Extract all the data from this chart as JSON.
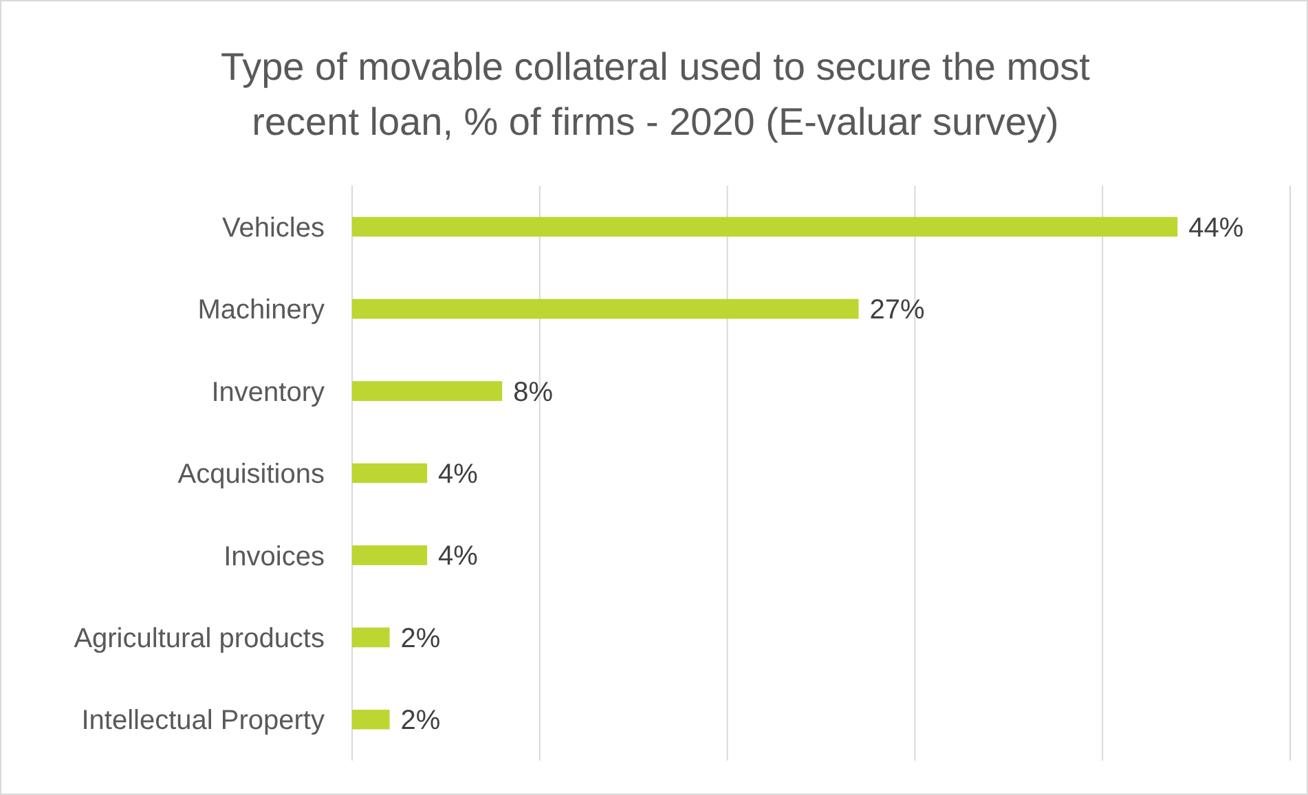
{
  "chart_data": {
    "type": "bar",
    "orientation": "horizontal",
    "title": "Type of movable collateral used to secure the most recent loan, % of firms - 2020 (E-valuar survey)",
    "categories": [
      "Vehicles",
      "Machinery",
      "Inventory",
      "Acquisitions",
      "Invoices",
      "Agricultural products",
      "Intellectual Property"
    ],
    "values": [
      44,
      27,
      8,
      4,
      4,
      2,
      2
    ],
    "value_labels": [
      "44%",
      "27%",
      "8%",
      "4%",
      "4%",
      "2%",
      "2%"
    ],
    "color": "#bdd631",
    "xlim": [
      0,
      50
    ],
    "xticks": [
      {
        "value": 0,
        "label": null
      },
      {
        "value": 10,
        "label": null
      },
      {
        "value": 20,
        "label": null
      },
      {
        "value": 30,
        "label": null
      },
      {
        "value": 40,
        "label": null
      },
      {
        "value": 50,
        "label": null
      }
    ],
    "tick_labels": "y",
    "grid": "x"
  }
}
